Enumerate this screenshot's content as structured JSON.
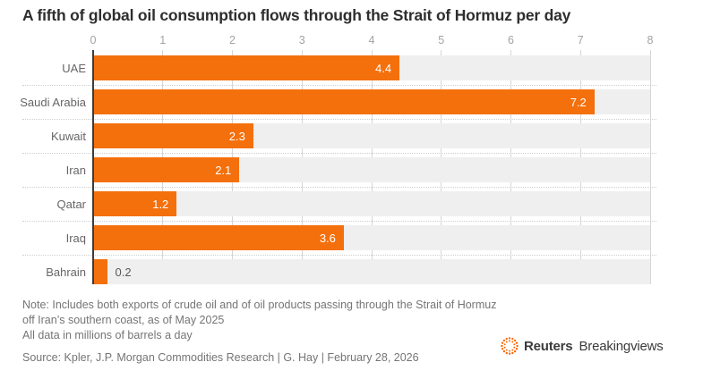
{
  "title": "A fifth of global oil consumption flows through the Strait of Hormuz per day",
  "chart_data": {
    "type": "bar",
    "orientation": "horizontal",
    "title": "A fifth of global oil consumption flows through the Strait of Hormuz per day",
    "categories": [
      "UAE",
      "Saudi Arabia",
      "Kuwait",
      "Iran",
      "Qatar",
      "Iraq",
      "Bahrain"
    ],
    "values": [
      4.4,
      7.2,
      2.3,
      2.1,
      1.2,
      3.6,
      0.2
    ],
    "value_labels": [
      "4.4",
      "7.2",
      "2.3",
      "2.1",
      "1.2",
      "3.6",
      "0.2"
    ],
    "xlim": [
      0,
      8
    ],
    "x_ticks": [
      0,
      1,
      2,
      3,
      4,
      5,
      6,
      7,
      8
    ],
    "grid": true,
    "axis_position": "top",
    "units": "millions of barrels a day"
  },
  "footer": {
    "note_lines": [
      "Note: Includes both exports of crude oil and of oil products passing through the Strait of Hormuz",
      "off Iran’s southern coast, as of May 2025",
      "All data in millions of barrels a day"
    ],
    "source": "Source: Kpler, J.P. Morgan Commodities Research | G. Hay | February 28, 2026"
  },
  "branding": {
    "logo_bold": "Reuters",
    "logo_regular": "Breakingviews",
    "logo_icon": "reuters-dotted-circle-icon"
  },
  "colors": {
    "bar": "#f4700c",
    "band": "#efefef",
    "grid": "#d6d6d6",
    "axis_line": "#3c3c3c",
    "tick_text": "#a3a3a3",
    "cat_text": "#666666",
    "val_in": "#ffffff",
    "val_out": "#595959",
    "title_text": "#2e2e2e",
    "note_text": "#757575",
    "sep": "#cfcfcf",
    "logo_orange": "#fa6400",
    "logo_text": "#3b3b3b"
  }
}
